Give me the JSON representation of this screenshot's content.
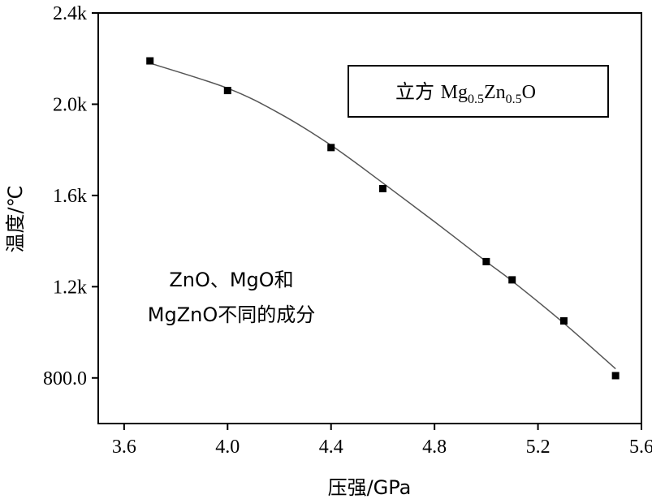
{
  "chart_data": {
    "type": "scatter",
    "title": "",
    "xlabel": "压强/GPa",
    "ylabel": "温度/℃",
    "xlim": [
      3.5,
      5.6
    ],
    "ylim": [
      600,
      2400
    ],
    "x_ticks": [
      "3.6",
      "4.0",
      "4.4",
      "4.8",
      "5.2",
      "5.6"
    ],
    "y_ticks": [
      "2.4k",
      "2.0k",
      "1.6k",
      "1.2k",
      "800.0"
    ],
    "legend": {
      "placement": "top-right",
      "prefix": "立方 ",
      "base": "Mg",
      "sub1": "0.5",
      "mid": "Zn",
      "sub2": "0.5",
      "suffix": "O"
    },
    "annotation": {
      "line1": "ZnO、MgO和",
      "line2": "MgZnO不同的成分"
    },
    "grid": false,
    "series": [
      {
        "name": "立方 Mg0.5Zn0.5O",
        "marker": "square",
        "color": "#000000",
        "points": [
          {
            "x": 3.7,
            "y": 2190
          },
          {
            "x": 4.0,
            "y": 2060
          },
          {
            "x": 4.4,
            "y": 1810
          },
          {
            "x": 4.6,
            "y": 1630
          },
          {
            "x": 5.0,
            "y": 1310
          },
          {
            "x": 5.1,
            "y": 1230
          },
          {
            "x": 5.3,
            "y": 1050
          },
          {
            "x": 5.5,
            "y": 810
          }
        ]
      }
    ],
    "fit_curve": {
      "color": "#555555",
      "points": [
        {
          "x": 3.7,
          "y": 2180
        },
        {
          "x": 4.0,
          "y": 2070
        },
        {
          "x": 4.2,
          "y": 1960
        },
        {
          "x": 4.4,
          "y": 1820
        },
        {
          "x": 4.6,
          "y": 1655
        },
        {
          "x": 4.8,
          "y": 1485
        },
        {
          "x": 5.0,
          "y": 1310
        },
        {
          "x": 5.1,
          "y": 1225
        },
        {
          "x": 5.3,
          "y": 1040
        },
        {
          "x": 5.5,
          "y": 840
        }
      ]
    }
  }
}
